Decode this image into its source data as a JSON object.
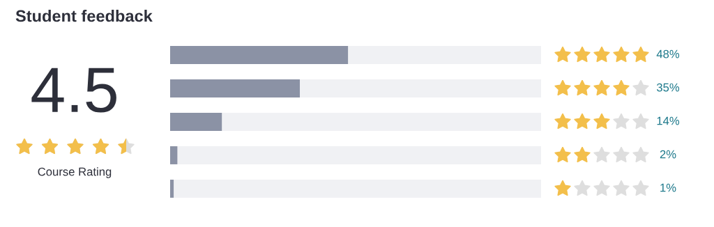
{
  "chart_data": {
    "type": "bar",
    "orientation": "horizontal",
    "stacked": true,
    "relative": false,
    "title": "Student feedback",
    "categories": [
      null,
      null,
      null,
      null,
      null
    ],
    "series": [
      {
        "color": "#8b92a5",
        "values": [
          48,
          35,
          14,
          2,
          1
        ],
        "value_labels": [
          "48%",
          "35%",
          "14%",
          "2%",
          "1%"
        ]
      },
      {
        "color": "#f0f1f4",
        "values": [
          52,
          65,
          86,
          98,
          99
        ]
      }
    ],
    "xlim": [
      0,
      100
    ],
    "tick_labels": false,
    "grid": false,
    "legend": false,
    "annotations": [
      "4.5",
      "Course Rating"
    ]
  }
}
